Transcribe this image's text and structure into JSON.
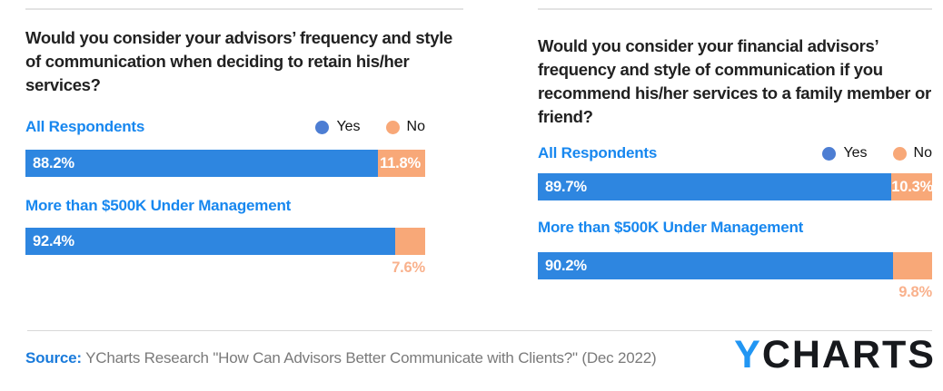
{
  "colors": {
    "bar_yes": "#2e86e0",
    "bar_no": "#f8a878",
    "legend_dot_yes": "#4d7ed3",
    "legend_dot_no": "#f8a878",
    "group_label_blue": "#1787ef",
    "title_text": "#212121",
    "below_label_orange": "#f9b18c",
    "source_label_blue": "#1a7bdb",
    "source_text_gray": "#7a7a7a",
    "logo_y_blue": "#2196f3",
    "logo_rest_black": "#17191d",
    "divider_gray": "#e3e3e3"
  },
  "charts": [
    {
      "title": "Would you consider your advisors’ frequency and style of communication when deciding to retain his/her services?",
      "legend": {
        "yes": "Yes",
        "no": "No"
      },
      "groups": [
        {
          "label": "All Respondents",
          "yes": 88.2,
          "no": 11.8,
          "yes_label": "88.2%",
          "no_label": "11.8%"
        },
        {
          "label": "More than $500K Under Management",
          "yes": 92.4,
          "no": 7.6,
          "yes_label": "92.4%",
          "no_label": "7.6%"
        }
      ]
    },
    {
      "title": "Would you consider your financial advisors’ frequency and style of communication if you recommend his/her services to a family member or friend?",
      "legend": {
        "yes": "Yes",
        "no": "No"
      },
      "groups": [
        {
          "label": "All Respondents",
          "yes": 89.7,
          "no": 10.3,
          "yes_label": "89.7%",
          "no_label": "10.3%"
        },
        {
          "label": "More than $500K Under Management",
          "yes": 90.2,
          "no": 9.8,
          "yes_label": "90.2%",
          "no_label": "9.8%"
        }
      ]
    }
  ],
  "footer": {
    "source_label": "Source:",
    "source_text": " YCharts Research \"How Can Advisors Better Communicate with Clients?\" (Dec 2022)",
    "logo_y": "Y",
    "logo_rest": "CHARTS"
  },
  "chart_data": [
    {
      "type": "bar",
      "orientation": "horizontal_stacked",
      "title": "Would you consider your advisors’ frequency and style of communication when deciding to retain his/her services?",
      "categories": [
        "All Respondents",
        "More than $500K Under Management"
      ],
      "series": [
        {
          "name": "Yes",
          "values": [
            88.2,
            92.4
          ]
        },
        {
          "name": "No",
          "values": [
            11.8,
            7.6
          ]
        }
      ],
      "value_format": "percent",
      "xlim": [
        0,
        100
      ],
      "grid": false,
      "legend_position": "top-right"
    },
    {
      "type": "bar",
      "orientation": "horizontal_stacked",
      "title": "Would you consider your financial advisors’ frequency and style of communication if you recommend his/her services to a family member or friend?",
      "categories": [
        "All Respondents",
        "More than $500K Under Management"
      ],
      "series": [
        {
          "name": "Yes",
          "values": [
            89.7,
            90.2
          ]
        },
        {
          "name": "No",
          "values": [
            10.3,
            9.8
          ]
        }
      ],
      "value_format": "percent",
      "xlim": [
        0,
        100
      ],
      "grid": false,
      "legend_position": "top-right"
    }
  ]
}
